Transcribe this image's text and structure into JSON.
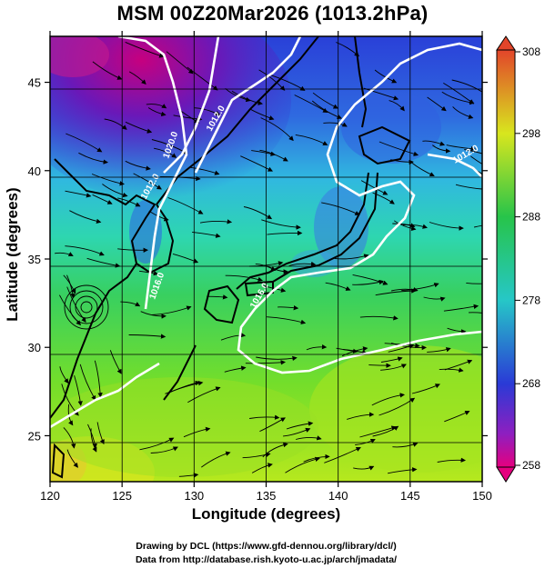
{
  "title": "MSM 00Z20Mar2026 (1013.2hPa)",
  "axes": {
    "xlabel": "Longitude (degrees)",
    "ylabel": "Latitude  (degrees)",
    "xticks": [
      "120",
      "125",
      "130",
      "135",
      "140",
      "145",
      "150"
    ],
    "yticks": [
      "25",
      "30",
      "35",
      "40",
      "45"
    ],
    "xlim": [
      120,
      150
    ],
    "ylim": [
      22.4,
      47.6
    ]
  },
  "colorbar": {
    "ticks": [
      "308",
      "298",
      "288",
      "278",
      "268",
      "258"
    ],
    "range": [
      258,
      308
    ]
  },
  "isobar_labels": [
    "1020.0",
    "1012.0",
    "1016.0",
    "1016.0",
    "1012.0",
    "1012.0"
  ],
  "credits": {
    "line1": "Drawing by DCL (https://www.gfd-dennou.org/library/dcl/)",
    "line2": "Data from http://database.rish.kyoto-u.ac.jp/arch/jmadata/"
  },
  "colors": {
    "colorbar_scale": [
      "#e5007f",
      "#2a3ad6",
      "#26c7c7",
      "#27c44a",
      "#d8e61e",
      "#e2452a"
    ],
    "isobar": "#ffffff",
    "streamline": "#000000"
  }
}
